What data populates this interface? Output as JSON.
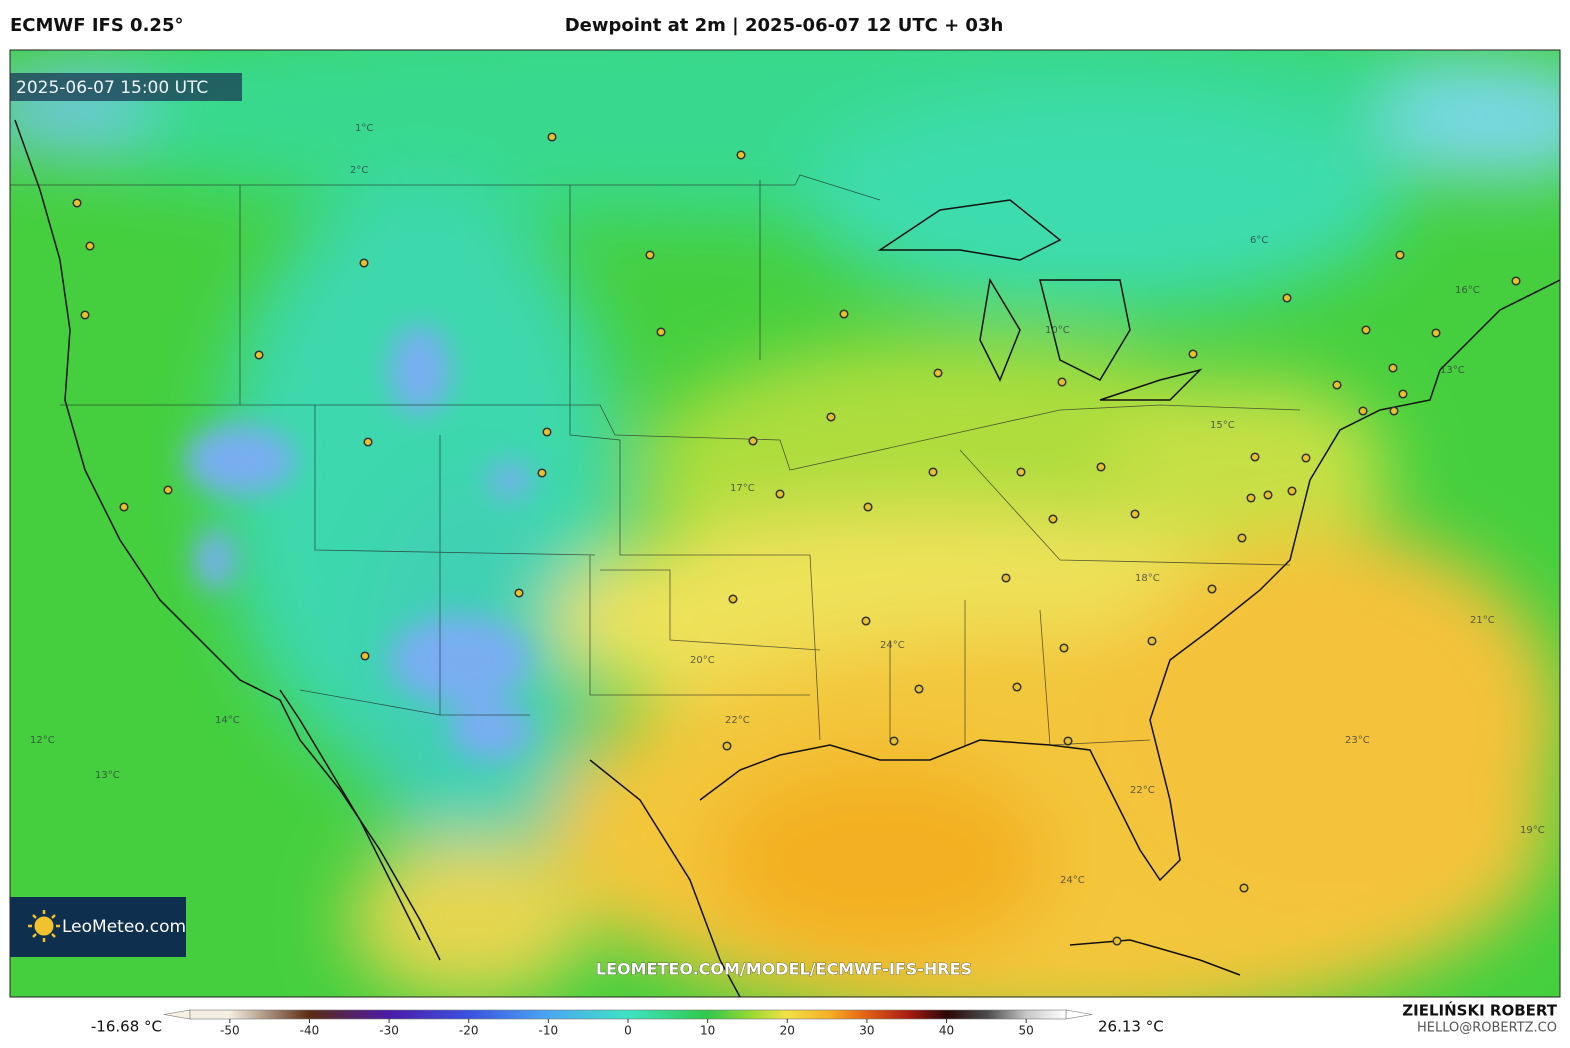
{
  "header": {
    "model": "ECMWF IFS 0.25°",
    "title": "Dewpoint at 2m | 2025-06-07 12 UTC + 03h"
  },
  "map": {
    "valid_time": "2025-06-07 15:00 UTC",
    "watermark": "LEOMETEO.COM/MODEL/ECMWF-IFS-HRES",
    "logo": "LeoMeteo.com",
    "contour_labels": [
      "2°C",
      "1°C",
      "12°C",
      "14°C",
      "13°C",
      "17°C",
      "20°C",
      "22°C",
      "24°C",
      "23°C",
      "21°C",
      "19°C",
      "16°C",
      "13°C",
      "6°C",
      "15°C",
      "18°C",
      "24°C",
      "22°C",
      "10°C"
    ]
  },
  "colorbar": {
    "min_label": "-16.68 °C",
    "max_label": "26.13 °C",
    "range": [
      -55,
      55
    ],
    "ticks": [
      -50,
      -40,
      -30,
      -20,
      -10,
      0,
      10,
      20,
      30,
      40,
      50
    ]
  },
  "footer": {
    "author": "ZIELIŃSKI ROBERT",
    "email": "HELLO@ROBERTZ.CO"
  }
}
